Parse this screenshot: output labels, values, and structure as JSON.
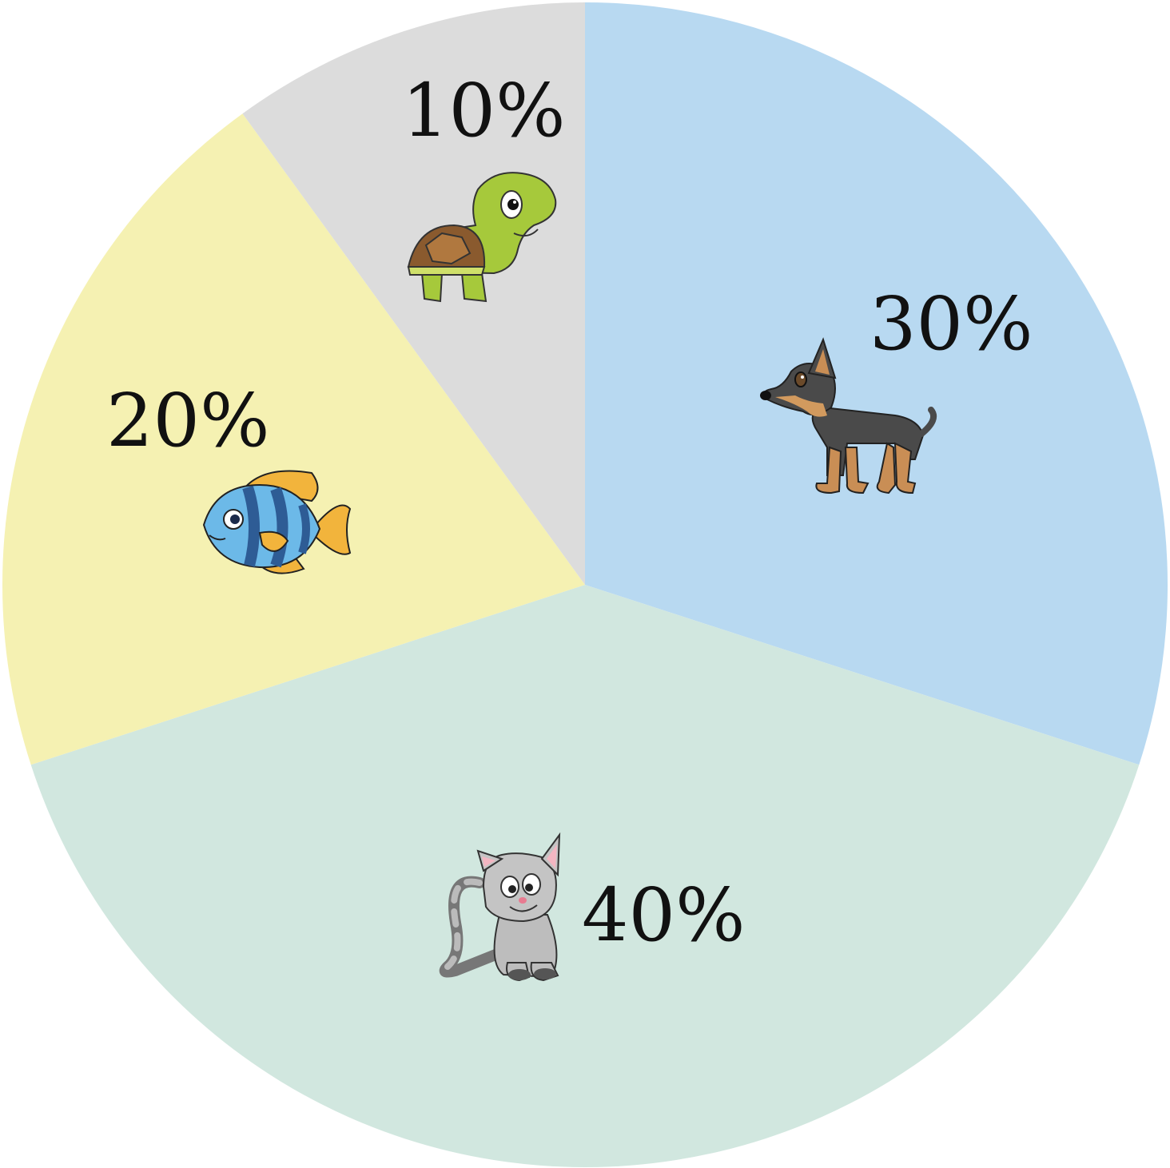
{
  "chart_data": {
    "type": "pie",
    "start_angle_deg": 0,
    "direction": "clockwise",
    "slices": [
      {
        "label": "30%",
        "value": 30,
        "color": "#B8D9F1",
        "icon": "dog-icon"
      },
      {
        "label": "40%",
        "value": 40,
        "color": "#D1E7DF",
        "icon": "cat-icon"
      },
      {
        "label": "20%",
        "value": 20,
        "color": "#F5F1B2",
        "icon": "fish-icon"
      },
      {
        "label": "10%",
        "value": 10,
        "color": "#DCDCDC",
        "icon": "turtle-icon"
      }
    ]
  }
}
